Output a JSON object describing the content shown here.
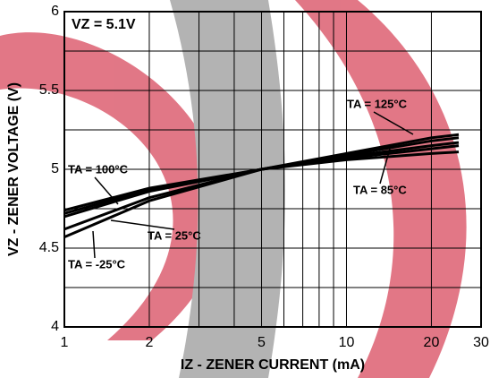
{
  "chart_data": {
    "type": "line",
    "log_x": true,
    "annotation": "VZ = 5.1V",
    "xlabel": "IZ - ZENER CURRENT (mA)",
    "ylabel": "VZ - ZENER VOLTAGE (V)",
    "x": [
      1,
      2,
      5,
      10,
      20,
      25
    ],
    "series": [
      {
        "name": "TA = 125°C",
        "color": "#000000",
        "values": [
          4.72,
          4.87,
          5.0,
          5.1,
          5.2,
          5.22
        ]
      },
      {
        "name": "TA = 100°C",
        "color": "#000000",
        "values": [
          4.74,
          4.88,
          5.0,
          5.09,
          5.18,
          5.2
        ]
      },
      {
        "name": "TA = 85°C",
        "color": "#000000",
        "values": [
          4.7,
          4.86,
          5.0,
          5.07,
          5.13,
          5.15
        ]
      },
      {
        "name": "TA = 25°C",
        "color": "#000000",
        "values": [
          4.62,
          4.82,
          5.0,
          5.08,
          5.15,
          5.17
        ]
      },
      {
        "name": "TA = -25°C",
        "color": "#000000",
        "values": [
          4.57,
          4.8,
          5.0,
          5.06,
          5.1,
          5.11
        ]
      }
    ],
    "xlim": [
      1,
      30
    ],
    "xticks": [
      1,
      2,
      5,
      10,
      20,
      30
    ],
    "xminor": [
      3,
      4,
      6,
      7,
      8,
      9
    ],
    "ylim": [
      4,
      6
    ],
    "yticks": [
      4,
      4.5,
      5,
      5.5,
      6
    ],
    "yminor": [
      4.25,
      4.75,
      5.25,
      5.75
    ],
    "grid": true
  }
}
